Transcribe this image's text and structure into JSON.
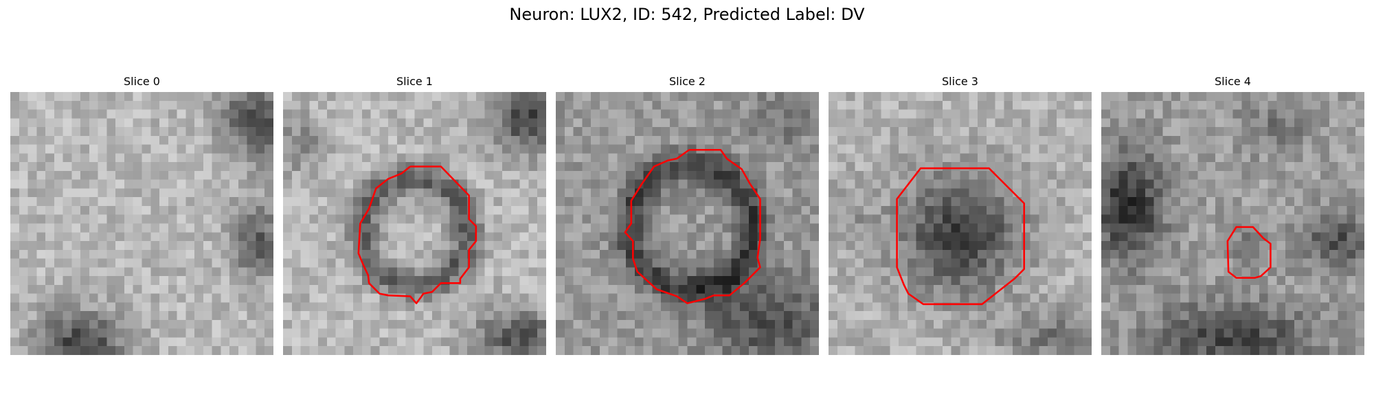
{
  "figure": {
    "title": "Neuron: LUX2, ID: 542, Predicted Label: DV"
  },
  "panels": [
    {
      "title": "Slice 0",
      "has_contour": false
    },
    {
      "title": "Slice 1",
      "has_contour": true
    },
    {
      "title": "Slice 2",
      "has_contour": true
    },
    {
      "title": "Slice 3",
      "has_contour": true
    },
    {
      "title": "Slice 4",
      "has_contour": true
    }
  ],
  "colors": {
    "contour": "#ff0000",
    "background": "#ffffff"
  }
}
